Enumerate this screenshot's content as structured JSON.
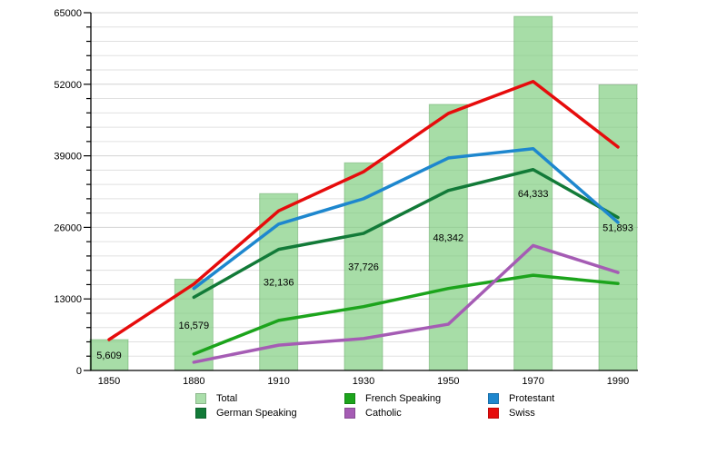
{
  "chart_data": {
    "type": "bar+line",
    "title": "",
    "categories": [
      "1850",
      "1880",
      "1910",
      "1930",
      "1950",
      "1970",
      "1990"
    ],
    "bars": {
      "name": "Total",
      "values": [
        5609,
        16579,
        32136,
        37726,
        48342,
        64333,
        51893
      ],
      "labels": [
        "5,609",
        "16,579",
        "32,136",
        "37,726",
        "48,342",
        "64,333",
        "51,893"
      ],
      "fill_color": "#aadeaa",
      "edge_color": "#7cc47c"
    },
    "series": [
      {
        "name": "German Speaking",
        "color": "#127a38",
        "values": [
          null,
          13300,
          22000,
          24900,
          32700,
          36500,
          27800
        ]
      },
      {
        "name": "French Speaking",
        "color": "#1ca41c",
        "values": [
          null,
          3000,
          9100,
          11600,
          14900,
          17300,
          15800
        ]
      },
      {
        "name": "Catholic",
        "color": "#a55cb4",
        "values": [
          null,
          1500,
          4600,
          5800,
          8400,
          22700,
          17800
        ]
      },
      {
        "name": "Protestant",
        "color": "#1e87ce",
        "values": [
          null,
          14900,
          26600,
          31200,
          38600,
          40300,
          26900
        ]
      },
      {
        "name": "Swiss",
        "color": "#e60c0c",
        "values": [
          5609,
          15700,
          29000,
          36100,
          46700,
          52500,
          40600
        ]
      }
    ],
    "y_axis": {
      "min": 0,
      "max": 65000,
      "major_step": 13000,
      "minor_step": 2600,
      "tick_labels": [
        "0",
        "13000",
        "26000",
        "39000",
        "52000",
        "65000"
      ]
    },
    "x_axis": {
      "tick_labels": [
        "1850",
        "1880",
        "1910",
        "1930",
        "1950",
        "1970",
        "1990"
      ]
    },
    "grid": "horizontal-minor",
    "legend_position": "bottom"
  },
  "legend": {
    "items": [
      {
        "label": "Total",
        "color": "#aadeaa"
      },
      {
        "label": "French Speaking",
        "color": "#1ca41c"
      },
      {
        "label": "Protestant",
        "color": "#1e87ce"
      },
      {
        "label": "German Speaking",
        "color": "#127a38"
      },
      {
        "label": "Catholic",
        "color": "#a55cb4"
      },
      {
        "label": "Swiss",
        "color": "#e60c0c"
      }
    ]
  },
  "colors": {
    "gridline_minor": "#e0e0e0",
    "gridline_major": "#d2d2d2",
    "axis": "#000000",
    "text": "#000000"
  }
}
